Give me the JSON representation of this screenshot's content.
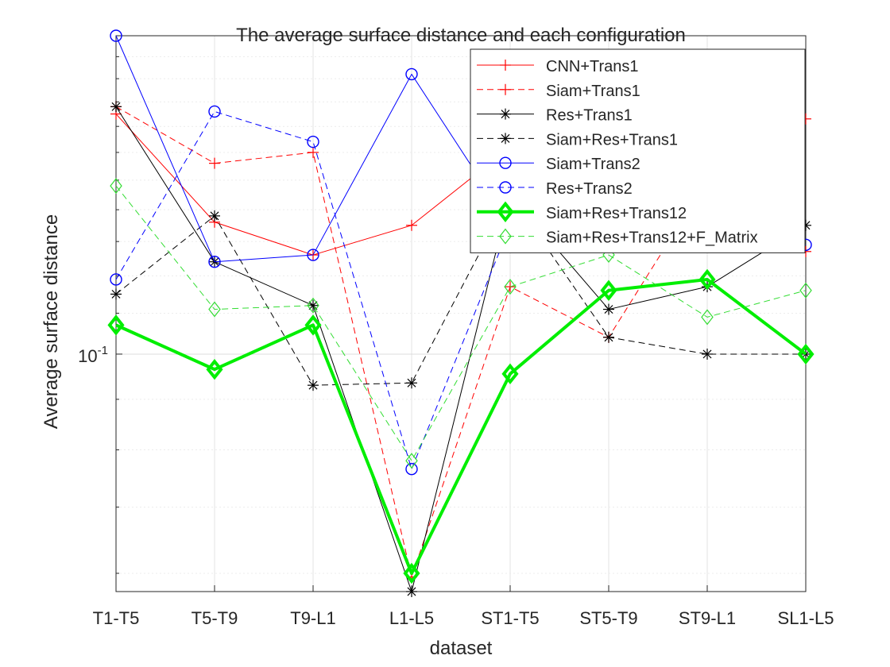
{
  "chart_data": {
    "type": "line",
    "title": "The average surface distance and each configuration",
    "xlabel": "dataset",
    "ylabel": "Average surface distance",
    "categories": [
      "T1-T5",
      "T5-T9",
      "T9-L1",
      "L1-L5",
      "ST1-T5",
      "ST5-T9",
      "ST9-L1",
      "SL1-L5"
    ],
    "y_scale": "log",
    "ylim": [
      0.0575,
      0.21
    ],
    "y_tick_label": "10^-1",
    "y_tick_value": 0.1,
    "grid": "on",
    "legend_position": "top-right",
    "series": [
      {
        "name": "CNN+Trans1",
        "color": "#ff0000",
        "dash": "solid",
        "marker": "plus",
        "width": 1,
        "values": [
          0.175,
          0.136,
          0.126,
          0.135,
          0.162,
          0.16,
          0.165,
          0.173
        ]
      },
      {
        "name": "Siam+Trans1",
        "color": "#ff0000",
        "dash": "dashed",
        "marker": "plus",
        "width": 1,
        "values": [
          0.178,
          0.156,
          0.16,
          0.0595,
          0.117,
          0.104,
          0.15,
          0.127
        ]
      },
      {
        "name": "Res+Trans1",
        "color": "#000000",
        "dash": "solid",
        "marker": "asterisk",
        "width": 1,
        "values": [
          0.178,
          0.124,
          0.112,
          0.0575,
          0.145,
          0.111,
          0.117,
          0.135
        ]
      },
      {
        "name": "Siam+Res+Trans1",
        "color": "#000000",
        "dash": "dashed",
        "marker": "asterisk",
        "width": 1,
        "values": [
          0.115,
          0.138,
          0.093,
          0.0935,
          0.145,
          0.104,
          0.1,
          0.1
        ]
      },
      {
        "name": "Siam+Trans2",
        "color": "#0000ff",
        "dash": "solid",
        "marker": "circle",
        "width": 1,
        "values": [
          0.21,
          0.124,
          0.126,
          0.192,
          0.135,
          null,
          null,
          0.129
        ]
      },
      {
        "name": "Res+Trans2",
        "color": "#0000ff",
        "dash": "dashed",
        "marker": "circle",
        "width": 1,
        "values": [
          0.119,
          0.176,
          0.164,
          0.0765,
          0.135,
          null,
          null,
          null
        ]
      },
      {
        "name": "Siam+Res+Trans12",
        "color": "#00ee00",
        "dash": "solid",
        "marker": "diamond",
        "width": 4,
        "values": [
          0.107,
          0.0965,
          0.107,
          0.06,
          0.0955,
          0.116,
          0.119,
          0.1
        ]
      },
      {
        "name": "Siam+Res+Trans12+F_Matrix",
        "color": "#33dd33",
        "dash": "dashed",
        "marker": "diamond",
        "width": 1,
        "values": [
          0.148,
          0.111,
          0.112,
          0.078,
          0.117,
          0.126,
          0.109,
          0.116
        ]
      }
    ]
  }
}
